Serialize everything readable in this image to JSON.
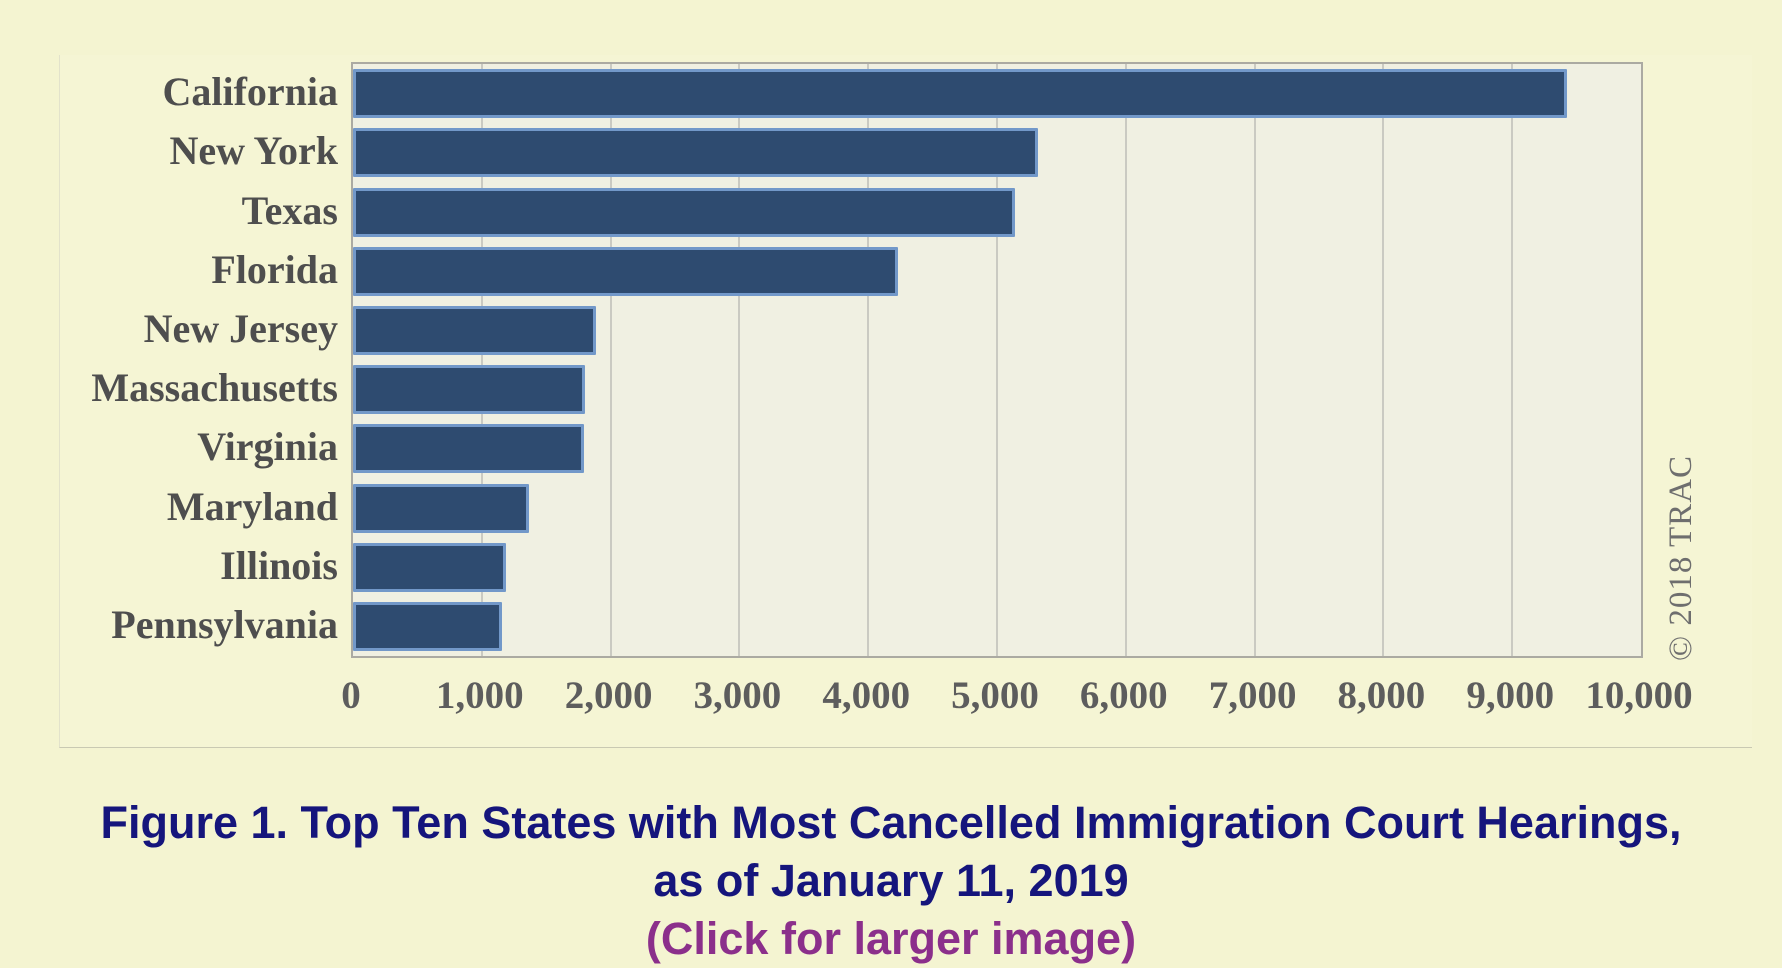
{
  "chart_data": {
    "type": "bar",
    "orientation": "horizontal",
    "categories": [
      "California",
      "New York",
      "Texas",
      "Florida",
      "New Jersey",
      "Massachusetts",
      "Virginia",
      "Maryland",
      "Illinois",
      "Pennsylvania"
    ],
    "values": [
      9424,
      5320,
      5141,
      4230,
      1890,
      1800,
      1790,
      1370,
      1190,
      1160
    ],
    "xlim": [
      0,
      10000
    ],
    "x_tick_step": 1000,
    "x_ticks": [
      "0",
      "1,000",
      "2,000",
      "3,000",
      "4,000",
      "5,000",
      "6,000",
      "7,000",
      "8,000",
      "9,000",
      "10,000"
    ],
    "grid": "vertical gridlines every 1,000",
    "legend": "none",
    "watermark": "© 2018 TRAC",
    "colors": {
      "bar_fill": "#2e4b70",
      "bar_border": "#7298c9",
      "plot_background": "#f0f0e2",
      "gridline": "#cacac2",
      "state_label_text": "#4e4e4e",
      "axis_tick_text": "#5d5d5d",
      "watermark_text": "#6e6e6e",
      "page_background": "#f4f4d1",
      "caption_text": "#15157c",
      "caption_link": "#8b2f8b"
    }
  },
  "caption": {
    "line1": "Figure 1. Top Ten States with Most Cancelled Immigration Court Hearings,",
    "line2": "as of January 11, 2019",
    "line3": "(Click for larger image)"
  }
}
